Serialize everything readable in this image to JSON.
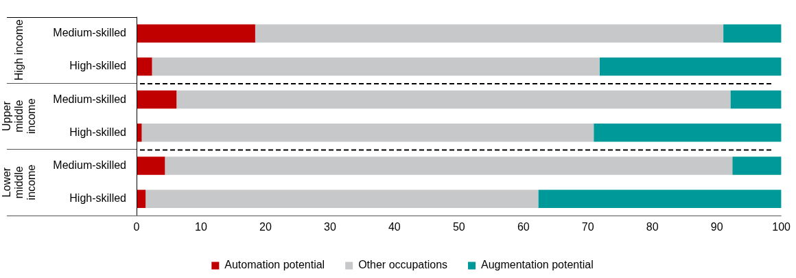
{
  "chart_data": {
    "type": "bar",
    "orientation": "horizontal",
    "stacked": true,
    "categories": [
      "Medium-skilled",
      "High-skilled",
      "Medium-skilled",
      "High-skilled",
      "Medium-skilled",
      "High-skilled"
    ],
    "series": [
      {
        "name": "Automation potential",
        "color": "#c00000",
        "values": [
          18.4,
          2.4,
          6.2,
          0.8,
          4.4,
          1.4
        ]
      },
      {
        "name": "Other occupations",
        "color": "#c7c8ca",
        "values": [
          72.6,
          69.4,
          85.9,
          70.1,
          88.0,
          60.9
        ]
      },
      {
        "name": "Augmentation potential",
        "color": "#009999",
        "values": [
          9.0,
          28.2,
          7.9,
          29.1,
          7.6,
          37.7
        ]
      }
    ],
    "xlim": [
      0,
      100
    ],
    "xticks": [
      0,
      10,
      20,
      30,
      40,
      50,
      60,
      70,
      80,
      90,
      100
    ],
    "annotations": [
      "High income",
      "Upper middle income",
      "Lower middle income"
    ],
    "grid": false,
    "legend": "bottom"
  }
}
